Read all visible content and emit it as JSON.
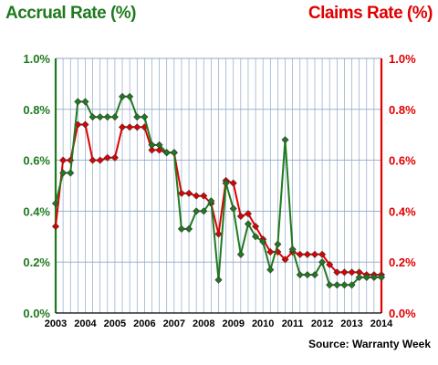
{
  "chart_data": {
    "type": "line",
    "left_axis_label": "Accrual Rate (%)",
    "right_axis_label": "Claims Rate (%)",
    "source": "Source: Warranty Week",
    "x_tick_labels": [
      "2003",
      "2004",
      "2005",
      "2006",
      "2007",
      "2008",
      "2009",
      "2010",
      "2011",
      "2012",
      "2013",
      "2014"
    ],
    "y_tick_labels": [
      "0.0%",
      "0.2%",
      "0.4%",
      "0.6%",
      "0.8%",
      "1.0%"
    ],
    "ylim": [
      0,
      1.0
    ],
    "xlim": [
      2003,
      2014
    ],
    "grid": true,
    "colors": {
      "accrual": "#1f7a1f",
      "claims": "#e00000",
      "grid": "#8fa8c8"
    },
    "series": [
      {
        "key": "accrual",
        "x": [
          2003.0,
          2003.25,
          2003.5,
          2003.75,
          2004.0,
          2004.25,
          2004.5,
          2004.75,
          2005.0,
          2005.25,
          2005.5,
          2005.75,
          2006.0,
          2006.25,
          2006.5,
          2006.75,
          2007.0,
          2007.25,
          2007.5,
          2007.75,
          2008.0,
          2008.25,
          2008.5,
          2008.75,
          2009.0,
          2009.25,
          2009.5,
          2009.75,
          2010.0,
          2010.25,
          2010.5,
          2010.75,
          2011.0,
          2011.25,
          2011.5,
          2011.75,
          2012.0,
          2012.25,
          2012.5,
          2012.75,
          2013.0,
          2013.25,
          2013.5,
          2013.75,
          2014.0
        ],
        "values": [
          0.43,
          0.55,
          0.55,
          0.83,
          0.83,
          0.77,
          0.77,
          0.77,
          0.77,
          0.85,
          0.85,
          0.77,
          0.77,
          0.66,
          0.66,
          0.63,
          0.63,
          0.33,
          0.33,
          0.4,
          0.4,
          0.44,
          0.13,
          0.51,
          0.41,
          0.23,
          0.35,
          0.3,
          0.28,
          0.17,
          0.27,
          0.68,
          0.25,
          0.15,
          0.15,
          0.15,
          0.2,
          0.11,
          0.11,
          0.11,
          0.11,
          0.14,
          0.14,
          0.14,
          0.14
        ]
      },
      {
        "key": "claims",
        "x": [
          2003.0,
          2003.25,
          2003.5,
          2003.75,
          2004.0,
          2004.25,
          2004.5,
          2004.75,
          2005.0,
          2005.25,
          2005.5,
          2005.75,
          2006.0,
          2006.25,
          2006.5,
          2006.75,
          2007.0,
          2007.25,
          2007.5,
          2007.75,
          2008.0,
          2008.25,
          2008.5,
          2008.75,
          2009.0,
          2009.25,
          2009.5,
          2009.75,
          2010.0,
          2010.25,
          2010.5,
          2010.75,
          2011.0,
          2011.25,
          2011.5,
          2011.75,
          2012.0,
          2012.25,
          2012.5,
          2012.75,
          2013.0,
          2013.25,
          2013.5,
          2013.75,
          2014.0
        ],
        "values": [
          0.34,
          0.6,
          0.6,
          0.74,
          0.74,
          0.6,
          0.6,
          0.61,
          0.61,
          0.73,
          0.73,
          0.73,
          0.73,
          0.64,
          0.64,
          0.63,
          0.63,
          0.47,
          0.47,
          0.46,
          0.46,
          0.43,
          0.31,
          0.52,
          0.51,
          0.38,
          0.39,
          0.34,
          0.29,
          0.24,
          0.24,
          0.21,
          0.24,
          0.23,
          0.23,
          0.23,
          0.23,
          0.19,
          0.16,
          0.16,
          0.16,
          0.16,
          0.15,
          0.15,
          0.15
        ]
      }
    ]
  }
}
